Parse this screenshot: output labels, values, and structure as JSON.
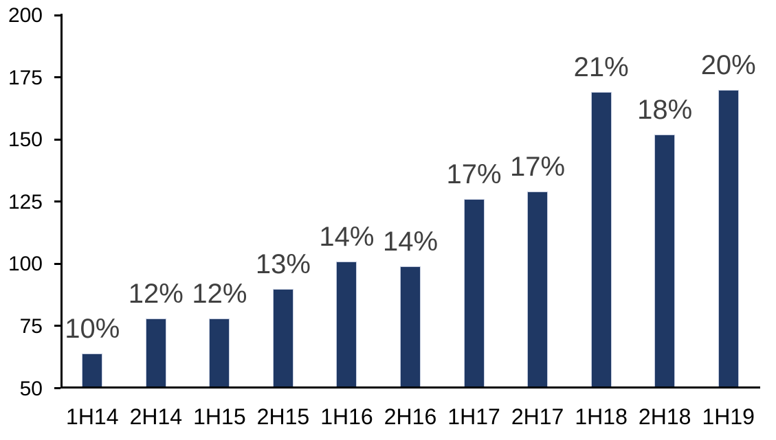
{
  "chart_data": {
    "type": "bar",
    "title": "",
    "xlabel": "",
    "ylabel": "",
    "categories": [
      "1H14",
      "2H14",
      "1H15",
      "2H15",
      "1H16",
      "2H16",
      "1H17",
      "2H17",
      "1H18",
      "2H18",
      "1H19"
    ],
    "values": [
      64,
      78,
      78,
      90,
      101,
      99,
      126,
      129,
      169,
      152,
      170
    ],
    "bar_labels": [
      "10%",
      "12%",
      "12%",
      "13%",
      "14%",
      "14%",
      "17%",
      "17%",
      "21%",
      "18%",
      "20%"
    ],
    "ylim": [
      50,
      200
    ],
    "yticks": [
      50,
      75,
      100,
      125,
      150,
      175,
      200
    ],
    "grid": false,
    "legend": "none",
    "colors": {
      "bar_fill": "#1F3864",
      "bar_border": "#C4CCDF",
      "axis": "#000000",
      "tick_label": "#000000",
      "data_label": "#404040",
      "background": "#FFFFFF"
    }
  }
}
